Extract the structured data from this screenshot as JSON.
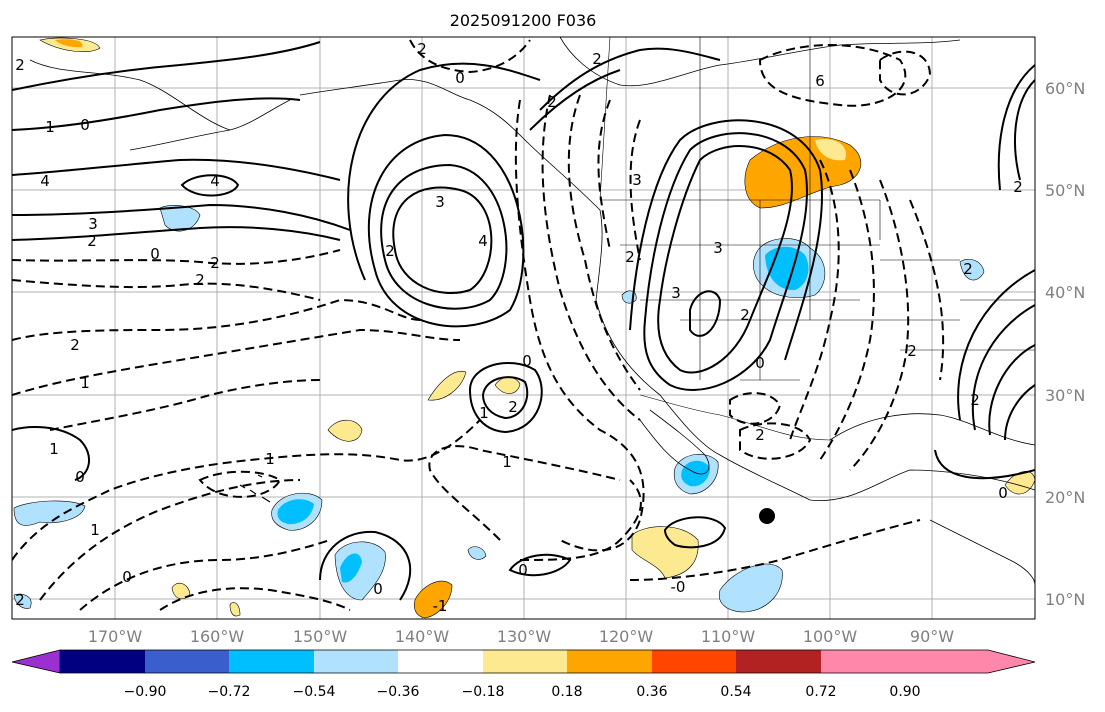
{
  "title": "2025091200 F036",
  "axes": {
    "lat_labels": [
      "60°N",
      "50°N",
      "40°N",
      "30°N",
      "20°N",
      "10°N"
    ],
    "lon_labels": [
      "170°W",
      "160°W",
      "150°W",
      "140°W",
      "130°W",
      "120°W",
      "110°W",
      "100°W",
      "90°W"
    ]
  },
  "colorbar": {
    "ticks": [
      "−0.90",
      "−0.72",
      "−0.54",
      "−0.36",
      "−0.18",
      "0.18",
      "0.36",
      "0.54",
      "0.72",
      "0.90"
    ],
    "colors": [
      "#9b30d0",
      "#000080",
      "#3a5fcd",
      "#00bfff",
      "#b0e2ff",
      "#ffffff",
      "#fde98f",
      "#ffa500",
      "#ff4500",
      "#b22222",
      "#ff88aa"
    ]
  },
  "contour_labels": [
    {
      "text": "2"
    },
    {
      "text": "1"
    },
    {
      "text": "0"
    },
    {
      "text": "4"
    },
    {
      "text": "4"
    },
    {
      "text": "3"
    },
    {
      "text": "2"
    },
    {
      "text": "0"
    },
    {
      "text": "2"
    },
    {
      "text": "2"
    },
    {
      "text": "3"
    },
    {
      "text": "4"
    },
    {
      "text": "2"
    },
    {
      "text": "2"
    },
    {
      "text": "0"
    },
    {
      "text": "2"
    },
    {
      "text": "1"
    },
    {
      "text": "0"
    },
    {
      "text": "2"
    },
    {
      "text": "1"
    },
    {
      "text": "1"
    },
    {
      "text": "0"
    },
    {
      "text": "1"
    },
    {
      "text": "0"
    },
    {
      "text": "1"
    },
    {
      "text": "2"
    },
    {
      "text": "1"
    },
    {
      "text": "0"
    },
    {
      "text": "-1"
    },
    {
      "text": "3"
    },
    {
      "text": "3"
    },
    {
      "text": "3"
    },
    {
      "text": "2"
    },
    {
      "text": "0"
    },
    {
      "text": "2"
    },
    {
      "text": "2"
    },
    {
      "text": "2"
    },
    {
      "text": "2"
    },
    {
      "text": "6"
    },
    {
      "text": "0"
    },
    {
      "text": "-0"
    },
    {
      "text": "2"
    },
    {
      "text": "0"
    },
    {
      "text": "2"
    },
    {
      "text": "2"
    },
    {
      "text": "2"
    }
  ]
}
